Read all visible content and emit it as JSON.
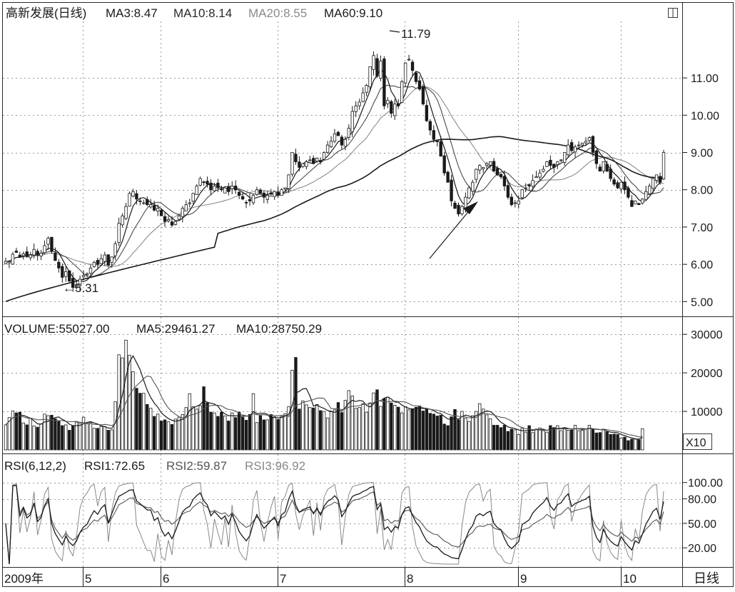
{
  "header": {
    "stock_title": "高新发展(日线)",
    "ma3": "MA3:8.47",
    "ma10": "MA10:8.14",
    "ma20": "MA20:8.55",
    "ma60": "MA60:9.10"
  },
  "price_panel": {
    "high_annotation": "11.79",
    "low_annotation": "←5.31"
  },
  "volume_panel": {
    "header_volume": "VOLUME:55027.00",
    "header_ma5": "MA5:29461.27",
    "header_ma10": "MA10:28750.29",
    "multiplier_label": "X10"
  },
  "rsi_panel": {
    "header_params": "RSI(6,12,2)",
    "header_rsi1": "RSI1:72.65",
    "header_rsi2": "RSI2:59.87",
    "header_rsi3": "RSI3:96.92"
  },
  "period_button": "日线",
  "colors": {
    "ink": "#1a1a1a",
    "series_light": "#888888",
    "grid": "#9a9a9a"
  },
  "chart_data": [
    {
      "type": "candlestick",
      "ylim": [
        4.7,
        12.4
      ],
      "yticks": [
        "11.00",
        "10.00",
        "9.00",
        "8.00",
        "7.00",
        "6.00",
        "5.00"
      ],
      "x_tick_labels": [
        "2009年",
        "5",
        "6",
        "7",
        "8",
        "9",
        "10"
      ],
      "closes": [
        6.08,
        6.07,
        6.27,
        6.32,
        6.2,
        6.28,
        6.22,
        6.25,
        6.4,
        6.25,
        6.3,
        6.5,
        6.7,
        6.35,
        6.1,
        5.9,
        5.65,
        5.8,
        5.55,
        5.38,
        5.45,
        5.6,
        5.7,
        5.75,
        5.9,
        6.05,
        6.0,
        6.15,
        6.25,
        5.98,
        6.2,
        6.55,
        7.1,
        7.3,
        7.55,
        7.9,
        7.95,
        7.75,
        7.7,
        7.65,
        7.6,
        7.6,
        7.45,
        7.5,
        7.3,
        7.15,
        7.2,
        7.05,
        7.15,
        7.3,
        7.5,
        7.6,
        7.65,
        7.9,
        8.1,
        8.3,
        8.2,
        8.15,
        8.0,
        8.1,
        8.05,
        8.0,
        8.05,
        7.95,
        8.1,
        8.0,
        7.85,
        7.75,
        7.65,
        7.7,
        7.85,
        8.0,
        7.9,
        7.8,
        7.85,
        7.9,
        7.95,
        7.85,
        8.0,
        8.05,
        8.4,
        9.0,
        8.75,
        8.6,
        8.7,
        8.75,
        8.8,
        8.7,
        8.85,
        8.75,
        9.0,
        9.2,
        9.3,
        9.5,
        9.45,
        9.2,
        9.35,
        9.65,
        10.1,
        10.25,
        10.35,
        10.6,
        10.8,
        11.3,
        11.6,
        11.05,
        11.45,
        10.25,
        10.4,
        10.05,
        10.3,
        10.25,
        10.9,
        11.4,
        11.5,
        11.2,
        10.9,
        10.7,
        10.3,
        9.85,
        9.6,
        9.35,
        9.3,
        8.9,
        8.45,
        8.2,
        7.7,
        7.5,
        7.35,
        7.55,
        7.8,
        8.05,
        8.2,
        8.55,
        8.65,
        8.6,
        8.7,
        8.75,
        8.5,
        8.4,
        8.35,
        8.1,
        7.8,
        7.6,
        7.65,
        7.7,
        8.0,
        8.05,
        8.1,
        8.25,
        8.35,
        8.45,
        8.55,
        8.75,
        8.65,
        8.6,
        8.75,
        8.8,
        9.0,
        9.2,
        9.05,
        9.15,
        9.2,
        9.25,
        9.3,
        9.4,
        9.0,
        8.7,
        8.5,
        8.75,
        8.5,
        8.3,
        8.15,
        8.05,
        8.2,
        8.0,
        7.8,
        7.55,
        7.7,
        7.6,
        7.75,
        7.95,
        8.1,
        8.3,
        8.4,
        8.2,
        9.0
      ],
      "series": [
        {
          "name": "MA3",
          "value": 8.47
        },
        {
          "name": "MA10",
          "value": 8.14
        },
        {
          "name": "MA20",
          "value": 8.55
        },
        {
          "name": "MA60",
          "value": 9.1
        }
      ],
      "annotations": [
        "11.79",
        "←5.31"
      ]
    },
    {
      "type": "bar",
      "ylim": [
        0,
        33000
      ],
      "yticks": [
        "30000",
        "20000",
        "10000"
      ],
      "volume": [
        6500,
        8400,
        10100,
        9600,
        9800,
        7000,
        6500,
        8200,
        6200,
        5900,
        6700,
        9300,
        8900,
        9000,
        8100,
        7400,
        6300,
        6500,
        5100,
        6200,
        7200,
        7000,
        8500,
        6800,
        7100,
        5600,
        5600,
        6100,
        6000,
        5100,
        5200,
        12500,
        24700,
        23900,
        28500,
        24600,
        20300,
        16000,
        14700,
        14700,
        11800,
        10800,
        8700,
        9300,
        7500,
        7800,
        7300,
        6600,
        8000,
        8500,
        9200,
        11000,
        14600,
        11200,
        10600,
        11500,
        16400,
        12200,
        9800,
        9600,
        8700,
        9800,
        8800,
        7500,
        9600,
        8400,
        9800,
        8500,
        7700,
        9200,
        14600,
        7100,
        8900,
        7800,
        7800,
        9200,
        8600,
        7900,
        8700,
        9400,
        11200,
        20700,
        24000,
        10600,
        12700,
        11700,
        11000,
        10900,
        11800,
        10200,
        10000,
        8300,
        9900,
        10400,
        12300,
        9700,
        12900,
        15400,
        14000,
        10800,
        11000,
        12000,
        9800,
        12200,
        14800,
        15600,
        11300,
        13300,
        13700,
        12200,
        11600,
        11100,
        9600,
        11200,
        10400,
        10700,
        11100,
        11400,
        10100,
        10600,
        9500,
        9300,
        8800,
        9000,
        6700,
        6300,
        8600,
        10500,
        7800,
        10000,
        8200,
        7400,
        8900,
        10000,
        12000,
        10600,
        9100,
        8100,
        6400,
        6400,
        5800,
        6400,
        4800,
        5400,
        5200,
        4000,
        5600,
        4600,
        6300,
        4500,
        5400,
        5700,
        5000,
        4600,
        6300,
        5800,
        6300,
        5000,
        5600,
        5100,
        5200,
        6400,
        5000,
        5100,
        5400,
        6400,
        5500,
        4400,
        4500,
        5400,
        4700,
        4000,
        4100,
        4000,
        3100,
        3300,
        2400,
        2800,
        2800,
        2600,
        5500
      ],
      "series": [
        {
          "name": "MA5",
          "value": 29461.27
        },
        {
          "name": "MA10",
          "value": 28750.29
        }
      ]
    },
    {
      "type": "line",
      "ylim": [
        0,
        112
      ],
      "yticks": [
        "100.00",
        "80.00",
        "50.00",
        "20.00"
      ],
      "series": [
        {
          "name": "RSI1",
          "value": 72.65
        },
        {
          "name": "RSI2",
          "value": 59.87
        },
        {
          "name": "RSI3",
          "value": 96.92
        }
      ]
    }
  ]
}
